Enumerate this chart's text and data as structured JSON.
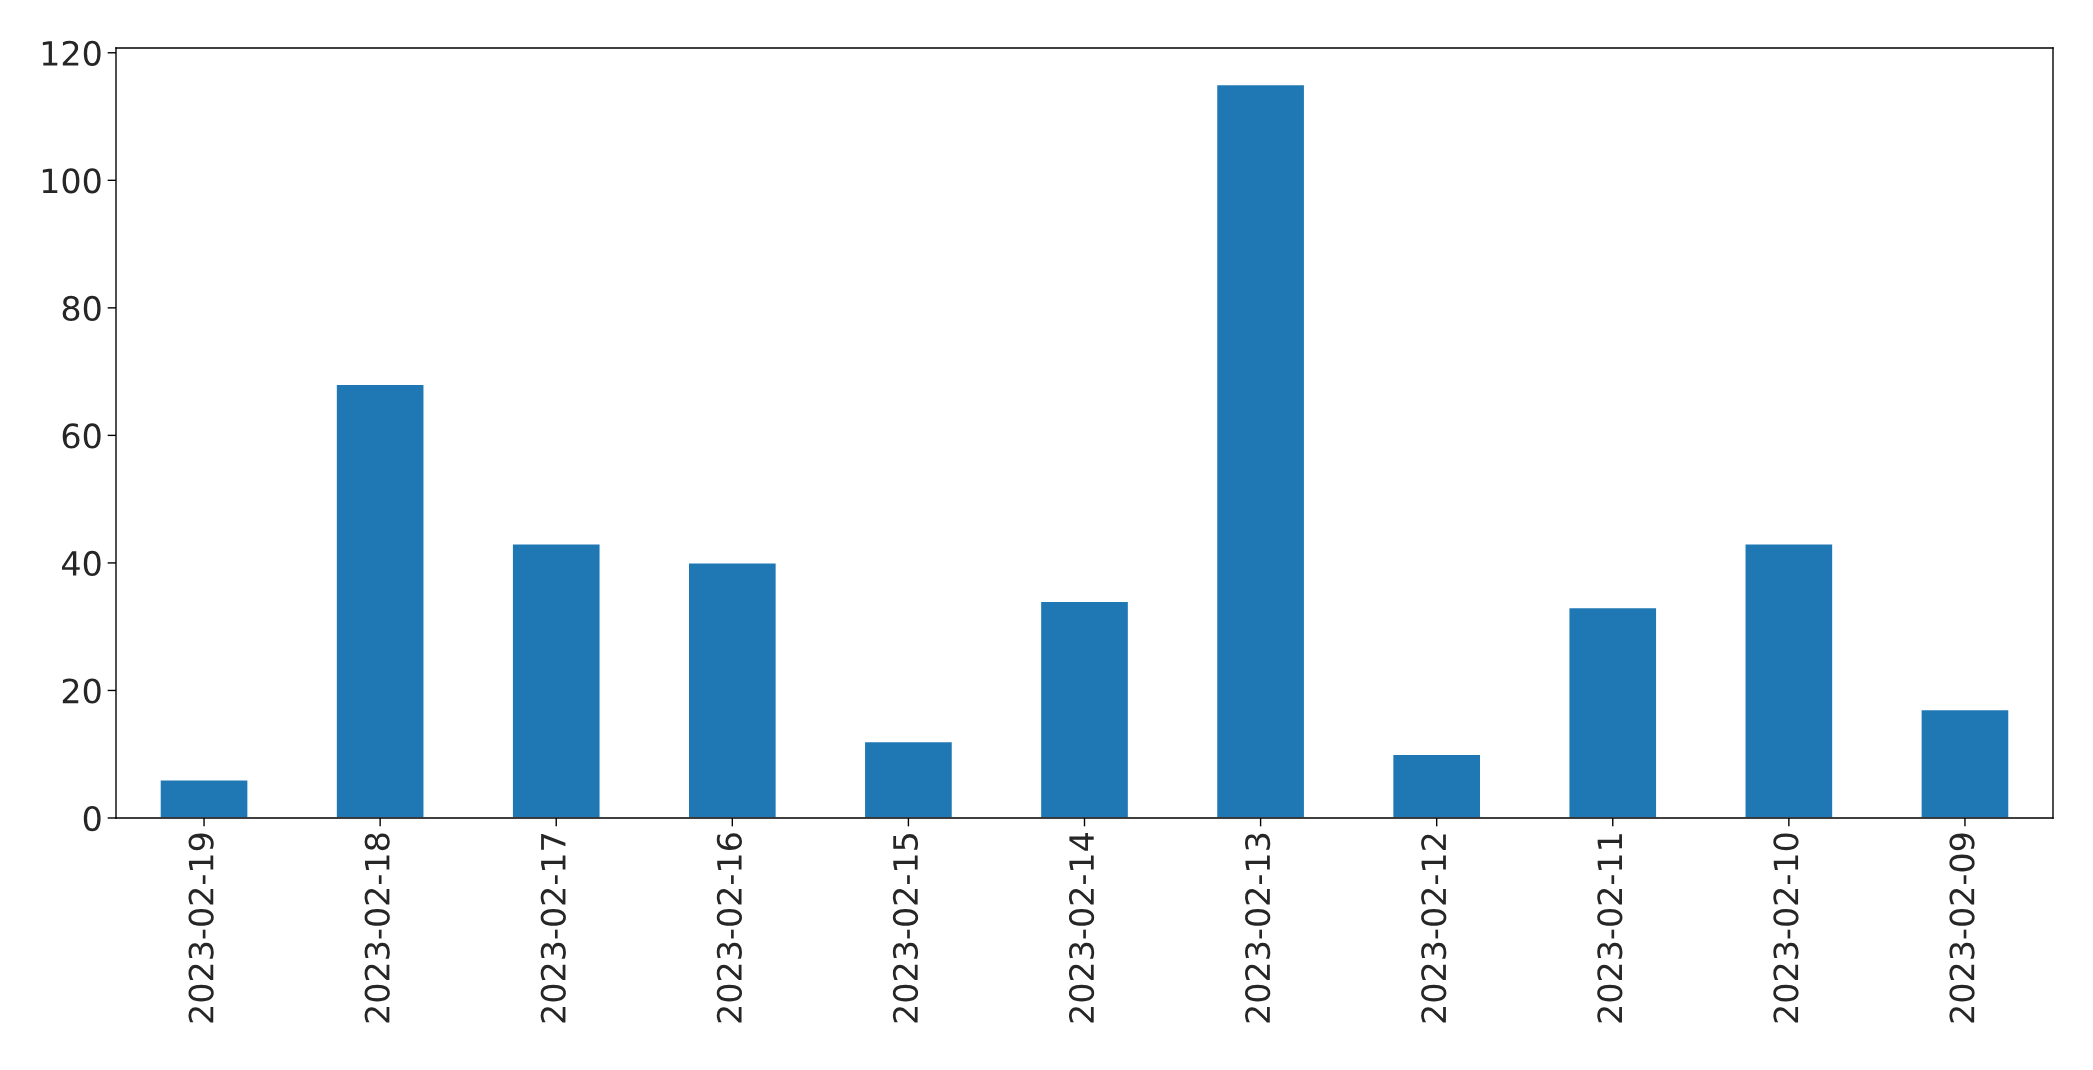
{
  "chart_data": {
    "type": "bar",
    "categories": [
      "2023-02-19",
      "2023-02-18",
      "2023-02-17",
      "2023-02-16",
      "2023-02-15",
      "2023-02-14",
      "2023-02-13",
      "2023-02-12",
      "2023-02-11",
      "2023-02-10",
      "2023-02-09"
    ],
    "values": [
      6,
      68,
      43,
      40,
      12,
      34,
      115,
      10,
      33,
      43,
      17
    ],
    "color": "#1f77b4",
    "ylim": [
      0,
      120.75
    ],
    "yticks": [
      0,
      20,
      40,
      60,
      80,
      100,
      120
    ],
    "grid": false
  }
}
